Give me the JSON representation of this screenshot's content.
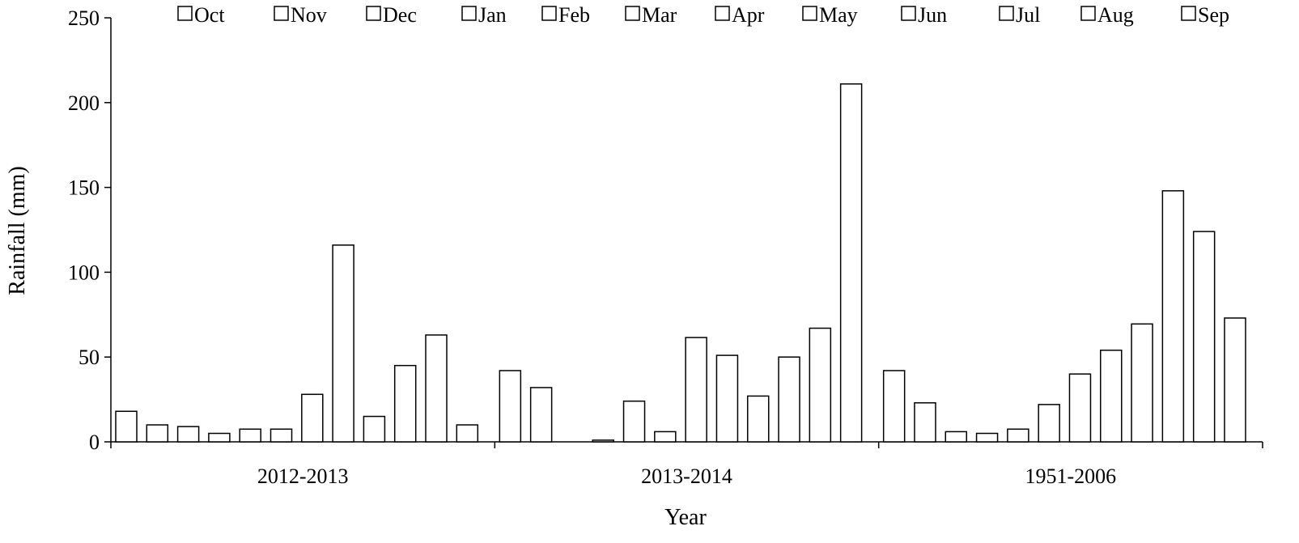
{
  "chart_data": {
    "type": "bar",
    "title": "",
    "xlabel": "Year",
    "ylabel": "Rainfall (mm)",
    "ylim": [
      0,
      250
    ],
    "yticks": [
      0,
      50,
      100,
      150,
      200,
      250
    ],
    "categories": [
      "2012-2013",
      "2013-2014",
      "1951-2006"
    ],
    "legend_position": "top",
    "grid": false,
    "series": [
      {
        "name": "Oct",
        "values": [
          18,
          42,
          42
        ]
      },
      {
        "name": "Nov",
        "values": [
          10,
          32,
          23
        ]
      },
      {
        "name": "Dec",
        "values": [
          9,
          0,
          6
        ]
      },
      {
        "name": "Jan",
        "values": [
          5,
          1,
          5
        ]
      },
      {
        "name": "Feb",
        "values": [
          7.5,
          24,
          7.5
        ]
      },
      {
        "name": "Mar",
        "values": [
          7.5,
          6,
          22
        ]
      },
      {
        "name": "Apr",
        "values": [
          28,
          61.5,
          40
        ]
      },
      {
        "name": "May",
        "values": [
          116,
          51,
          54
        ]
      },
      {
        "name": "Jun",
        "values": [
          15,
          27,
          69.5
        ]
      },
      {
        "name": "Jul",
        "values": [
          45,
          50,
          148
        ]
      },
      {
        "name": "Aug",
        "values": [
          63,
          67,
          124
        ]
      },
      {
        "name": "Sep",
        "values": [
          10,
          211,
          73
        ]
      }
    ]
  }
}
